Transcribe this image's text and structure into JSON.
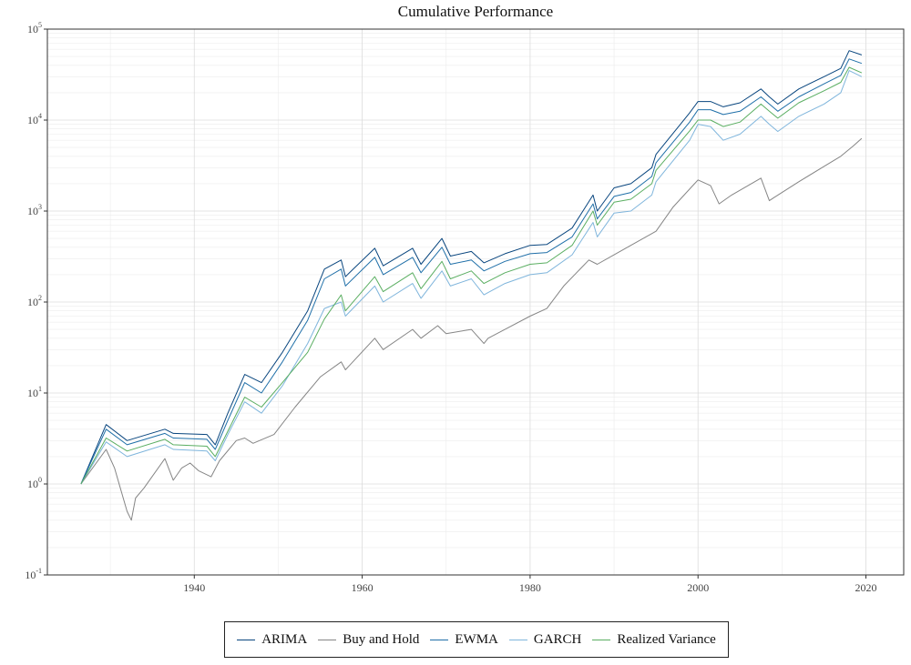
{
  "chart_data": {
    "type": "line",
    "title": "Cumulative Performance",
    "xlabel": "",
    "ylabel": "",
    "yscale": "log10",
    "ylim": [
      0.1,
      100000
    ],
    "xlim": [
      1922.5,
      2024.5
    ],
    "x_ticks": [
      1940,
      1960,
      1980,
      2000,
      2020
    ],
    "x_tick_labels": [
      "1940",
      "1960",
      "1980",
      "2000",
      "2020"
    ],
    "y_tick_labels": [
      {
        "base": "10",
        "exp": "5"
      },
      {
        "base": "10",
        "exp": "4"
      },
      {
        "base": "10",
        "exp": "3"
      },
      {
        "base": "10",
        "exp": "2"
      },
      {
        "base": "10",
        "exp": "1"
      },
      {
        "base": "10",
        "exp": "0"
      },
      {
        "base": "10",
        "exp": "-1"
      }
    ],
    "y_tick_values": [
      100000,
      10000,
      1000,
      100,
      10,
      1,
      0.1
    ],
    "legend_position": "bottom",
    "series": [
      {
        "name": "ARIMA",
        "color": "#08457e",
        "x": [
          1926.5,
          1929.5,
          1932,
          1936.5,
          1937.5,
          1941.5,
          1942.5,
          1944,
          1946,
          1948,
          1950.5,
          1953.5,
          1955.5,
          1957.5,
          1958,
          1961.5,
          1962.5,
          1966,
          1967,
          1969.5,
          1970.5,
          1973,
          1974.5,
          1977,
          1980,
          1982,
          1985,
          1987.5,
          1988,
          1990,
          1992,
          1994.5,
          1995,
          1999,
          2000,
          2001.5,
          2003,
          2005,
          2007.5,
          2008.5,
          2009.5,
          2012,
          2015,
          2017,
          2018,
          2019.5
        ],
        "y": [
          1,
          4.5,
          3,
          4,
          3.6,
          3.5,
          2.7,
          6,
          16,
          13,
          28,
          80,
          230,
          290,
          190,
          390,
          250,
          390,
          260,
          500,
          320,
          360,
          270,
          340,
          420,
          430,
          650,
          1500,
          1000,
          1800,
          2000,
          3000,
          4200,
          12000,
          16000,
          16000,
          14000,
          15500,
          22000,
          18000,
          15000,
          22000,
          30000,
          37000,
          58000,
          52000
        ]
      },
      {
        "name": "Buy and Hold",
        "color": "#858585",
        "x": [
          1926.5,
          1929.5,
          1930.5,
          1932,
          1932.5,
          1933,
          1934,
          1936.5,
          1937.5,
          1938.5,
          1939.5,
          1940.5,
          1942,
          1943,
          1945,
          1946,
          1947,
          1949.5,
          1952,
          1955,
          1957.5,
          1958,
          1961.5,
          1962.5,
          1966,
          1967,
          1969,
          1970,
          1973,
          1974.5,
          1975,
          1977,
          1980,
          1982,
          1984,
          1987,
          1988,
          1990,
          1992,
          1995,
          1997,
          2000,
          2001.5,
          2002.5,
          2004,
          2007.5,
          2008.5,
          2009,
          2012,
          2015,
          2017,
          2018.5,
          2019.5
        ],
        "y": [
          1,
          2.4,
          1.5,
          0.5,
          0.4,
          0.7,
          0.9,
          1.9,
          1.1,
          1.5,
          1.7,
          1.4,
          1.2,
          1.8,
          3,
          3.2,
          2.8,
          3.5,
          7,
          15,
          22,
          18,
          40,
          30,
          50,
          40,
          55,
          45,
          50,
          35,
          40,
          50,
          70,
          85,
          150,
          290,
          260,
          330,
          420,
          600,
          1100,
          2200,
          1900,
          1200,
          1500,
          2300,
          1300,
          1400,
          2100,
          3100,
          4000,
          5200,
          6300
        ]
      },
      {
        "name": "EWMA",
        "color": "#1f6fa8",
        "x": [
          1926.5,
          1929.5,
          1932,
          1936.5,
          1937.5,
          1941.5,
          1942.5,
          1944,
          1946,
          1948,
          1950.5,
          1953.5,
          1955.5,
          1957.5,
          1958,
          1961.5,
          1962.5,
          1966,
          1967,
          1969.5,
          1970.5,
          1973,
          1974.5,
          1977,
          1980,
          1982,
          1985,
          1987.5,
          1988,
          1990,
          1992,
          1994.5,
          1995,
          1999,
          2000,
          2001.5,
          2003,
          2005,
          2007.5,
          2008.5,
          2009.5,
          2012,
          2015,
          2017,
          2018,
          2019.5
        ],
        "y": [
          1,
          4,
          2.7,
          3.6,
          3.2,
          3.1,
          2.4,
          5,
          13,
          10,
          22,
          63,
          180,
          230,
          150,
          310,
          200,
          310,
          210,
          400,
          260,
          290,
          220,
          280,
          340,
          350,
          520,
          1200,
          820,
          1450,
          1600,
          2400,
          3400,
          9500,
          13000,
          13000,
          11500,
          12500,
          18000,
          15000,
          12500,
          18000,
          25000,
          31000,
          47000,
          42000
        ]
      },
      {
        "name": "GARCH",
        "color": "#7fb5dc",
        "x": [
          1926.5,
          1929.5,
          1932,
          1936.5,
          1937.5,
          1941.5,
          1942.5,
          1944,
          1946,
          1948,
          1950.5,
          1953.5,
          1955.5,
          1957.5,
          1958,
          1961.5,
          1962.5,
          1966,
          1967,
          1969.5,
          1970.5,
          1973,
          1974.5,
          1977,
          1980,
          1982,
          1985,
          1987.5,
          1988,
          1990,
          1992,
          1994.5,
          1995,
          1999,
          2000,
          2001.5,
          2003,
          2005,
          2007.5,
          2008.5,
          2009.5,
          2012,
          2015,
          2017,
          2018,
          2019.5
        ],
        "y": [
          1,
          2.9,
          2,
          2.7,
          2.4,
          2.3,
          1.8,
          3.5,
          8,
          6,
          12,
          35,
          85,
          100,
          70,
          150,
          100,
          160,
          110,
          220,
          150,
          180,
          120,
          160,
          200,
          210,
          330,
          750,
          520,
          950,
          1000,
          1500,
          2100,
          6000,
          9000,
          8500,
          6000,
          7000,
          11000,
          9000,
          7500,
          11000,
          15000,
          20000,
          35000,
          30000
        ]
      },
      {
        "name": "Realized Variance",
        "color": "#5aae61",
        "x": [
          1926.5,
          1929.5,
          1932,
          1936.5,
          1937.5,
          1941.5,
          1942.5,
          1944,
          1946,
          1948,
          1950.5,
          1953.5,
          1955.5,
          1957.5,
          1958,
          1961.5,
          1962.5,
          1966,
          1967,
          1969.5,
          1970.5,
          1973,
          1974.5,
          1977,
          1980,
          1982,
          1985,
          1987.5,
          1988,
          1990,
          1992,
          1994.5,
          1995,
          1999,
          2000,
          2001.5,
          2003,
          2005,
          2007.5,
          2008.5,
          2009.5,
          2012,
          2015,
          2017,
          2018,
          2019.5
        ],
        "y": [
          1,
          3.2,
          2.3,
          3.1,
          2.7,
          2.6,
          2,
          3.8,
          9,
          7,
          13,
          28,
          65,
          120,
          80,
          190,
          130,
          210,
          140,
          280,
          180,
          220,
          160,
          210,
          260,
          270,
          420,
          1000,
          700,
          1250,
          1350,
          2000,
          2800,
          7600,
          10000,
          10000,
          8500,
          9500,
          15000,
          12500,
          10500,
          15500,
          21000,
          26000,
          38000,
          33000
        ]
      }
    ]
  }
}
